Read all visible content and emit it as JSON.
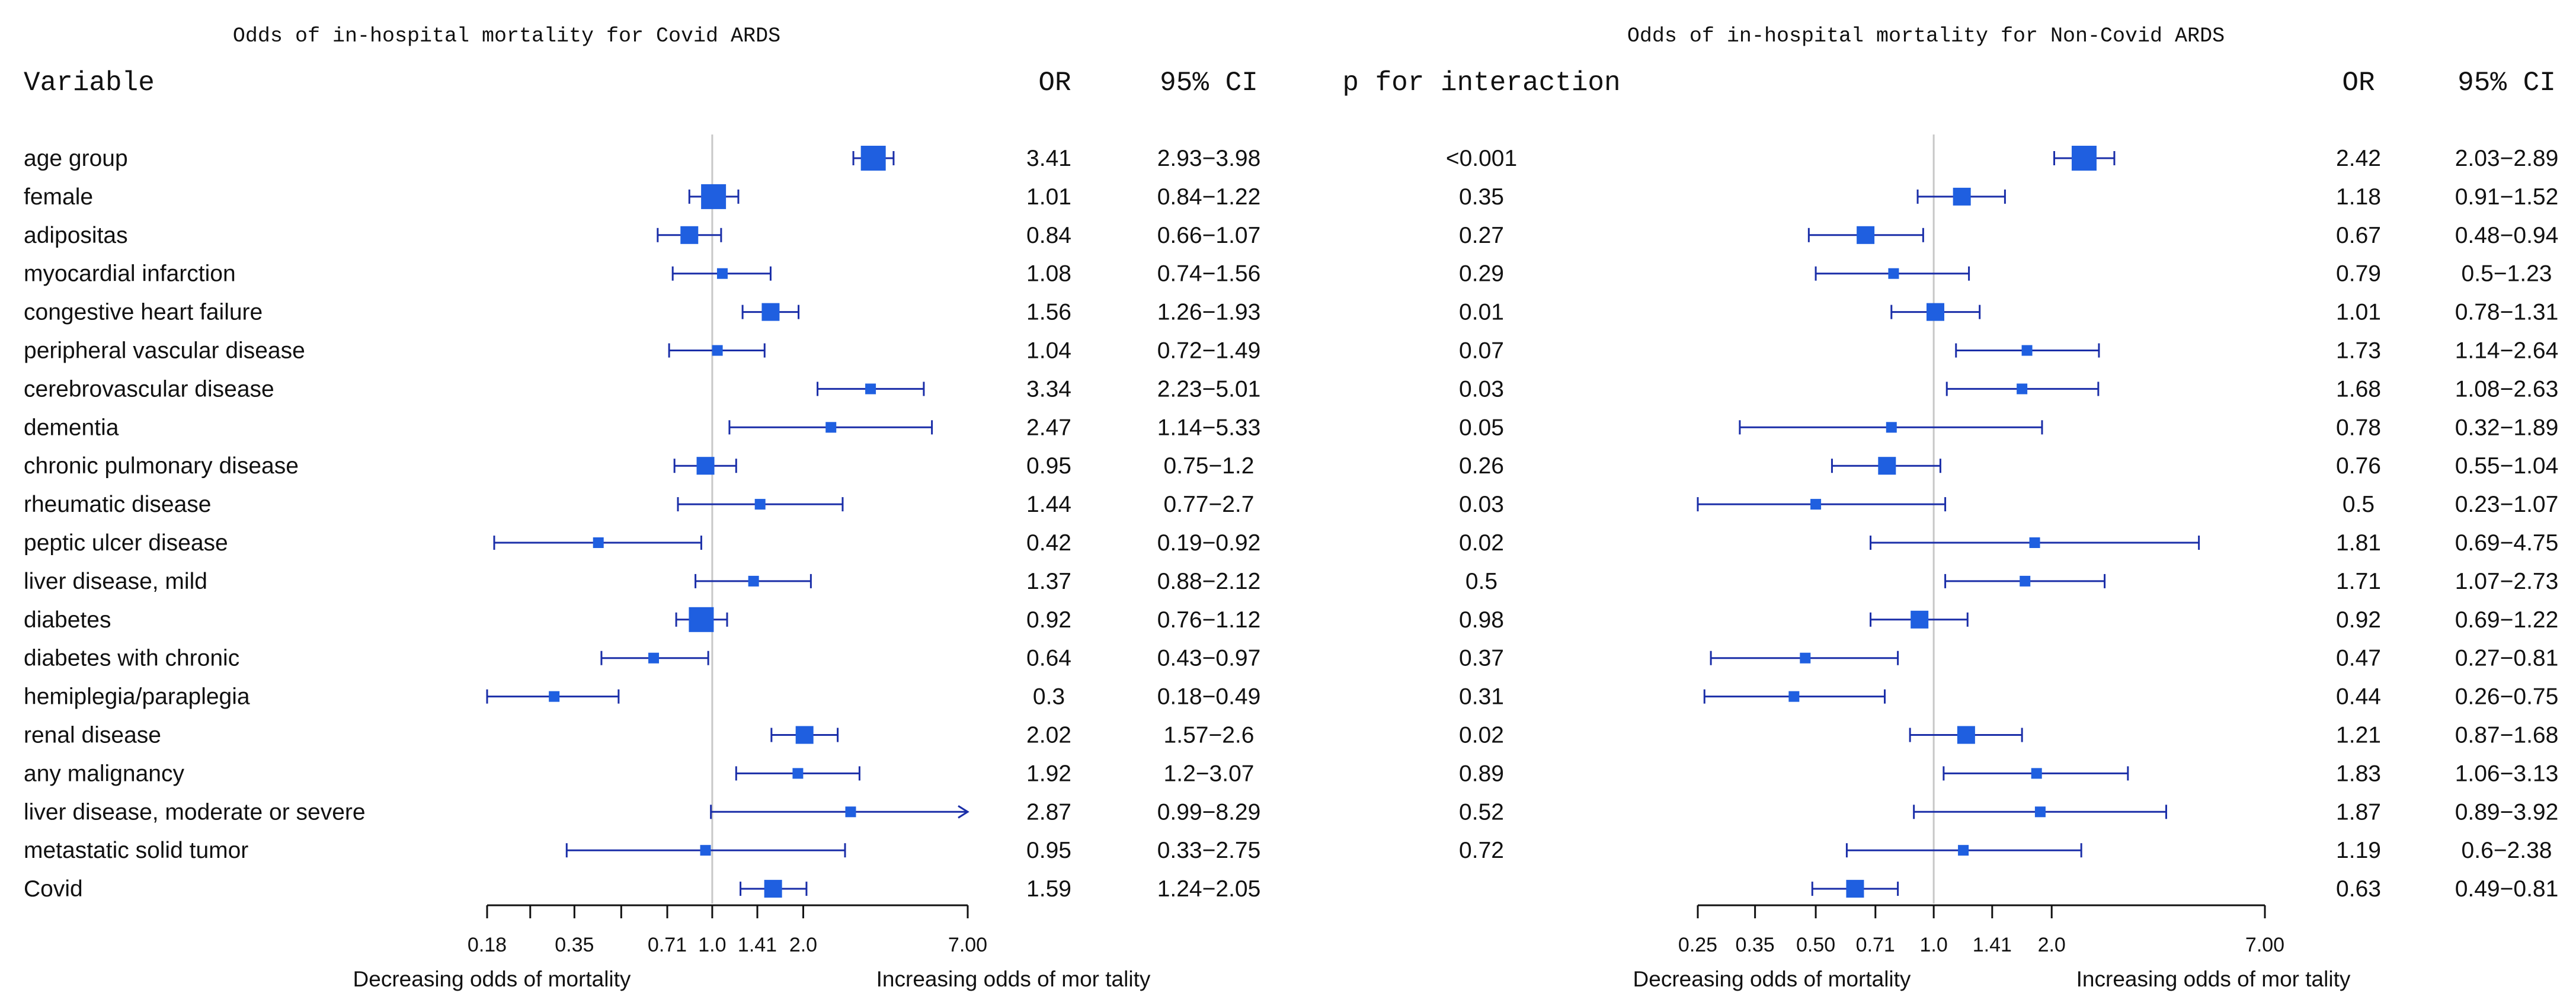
{
  "colors": {
    "marker": "#1F5FE0",
    "ci": "#1A2EA8",
    "axis": "#111111",
    "ref": "#C8C8C8"
  },
  "headers": {
    "variable": "Variable",
    "or": "OR",
    "ci": "95% CI",
    "p_interaction": "p for interaction"
  },
  "direction": {
    "decreasing": "Decreasing odds of mortality",
    "increasing": "Increasing odds of mor tality"
  },
  "variables": [
    "age group",
    "female",
    "adipositas",
    "myocardial infarction",
    "congestive heart failure",
    "peripheral vascular disease",
    "cerebrovascular disease",
    "dementia",
    "chronic pulmonary disease",
    "rheumatic disease",
    "peptic ulcer disease",
    "liver disease, mild",
    "diabetes",
    "diabetes with chronic",
    "hemiplegia/paraplegia",
    "renal disease",
    "any malignancy",
    "liver disease, moderate or severe",
    "metastatic solid tumor",
    "Covid"
  ],
  "p_for_interaction": [
    "<0.001",
    "0.35",
    "0.27",
    "0.29",
    "0.01",
    "0.07",
    "0.03",
    "0.05",
    "0.26",
    "0.03",
    "0.02",
    "0.5",
    "0.98",
    "0.37",
    "0.31",
    "0.02",
    "0.89",
    "0.52",
    "0.72",
    ""
  ],
  "chart_data": [
    {
      "type": "forest",
      "title": "Odds of in-hospital mortality for Covid ARDS",
      "scale": "log",
      "xlim": [
        0.18,
        7.0
      ],
      "reference": 1.0,
      "ticks": [
        0.18,
        0.25,
        0.35,
        0.5,
        0.71,
        1.0,
        1.41,
        2.0,
        7.0
      ],
      "tick_labels": [
        "0.18",
        "",
        "0.35",
        "",
        "0.71",
        "1.0",
        "1.41",
        "2.0",
        "7.00"
      ],
      "or": [
        3.41,
        1.01,
        0.84,
        1.08,
        1.56,
        1.04,
        3.34,
        2.47,
        0.95,
        1.44,
        0.42,
        1.37,
        0.92,
        0.64,
        0.3,
        2.02,
        1.92,
        2.87,
        0.95,
        1.59
      ],
      "or_text": [
        "3.41",
        "1.01",
        "0.84",
        "1.08",
        "1.56",
        "1.04",
        "3.34",
        "2.47",
        "0.95",
        "1.44",
        "0.42",
        "1.37",
        "0.92",
        "0.64",
        "0.3",
        "2.02",
        "1.92",
        "2.87",
        "0.95",
        "1.59"
      ],
      "lower": [
        2.93,
        0.84,
        0.66,
        0.74,
        1.26,
        0.72,
        2.23,
        1.14,
        0.75,
        0.77,
        0.19,
        0.88,
        0.76,
        0.43,
        0.18,
        1.57,
        1.2,
        0.99,
        0.33,
        1.24
      ],
      "upper": [
        3.98,
        1.22,
        1.07,
        1.56,
        1.93,
        1.49,
        5.01,
        5.33,
        1.2,
        2.7,
        0.92,
        2.12,
        1.12,
        0.97,
        0.49,
        2.6,
        3.07,
        8.29,
        2.75,
        2.05
      ],
      "ci_text": [
        "2.93−3.98",
        "0.84−1.22",
        "0.66−1.07",
        "0.74−1.56",
        "1.26−1.93",
        "0.72−1.49",
        "2.23−5.01",
        "1.14−5.33",
        "0.75−1.2",
        "0.77−2.7",
        "0.19−0.92",
        "0.88−2.12",
        "0.76−1.12",
        "0.43−0.97",
        "0.18−0.49",
        "1.57−2.6",
        "1.2−3.07",
        "0.99−8.29",
        "0.33−2.75",
        "1.24−2.05"
      ],
      "marker_weight": [
        3,
        3,
        2,
        1,
        2,
        1,
        1,
        1,
        2,
        1,
        1,
        1,
        3,
        1,
        1,
        2,
        1,
        1,
        1,
        2
      ]
    },
    {
      "type": "forest",
      "title": "Odds of in-hospital mortality for Non-Covid ARDS",
      "scale": "log",
      "xlim": [
        0.25,
        7.0
      ],
      "reference": 1.0,
      "ticks": [
        0.25,
        0.35,
        0.5,
        0.71,
        1.0,
        1.41,
        2.0,
        7.0
      ],
      "tick_labels": [
        "0.25",
        "0.35",
        "0.50",
        "0.71",
        "1.0",
        "1.41",
        "2.0",
        "7.00"
      ],
      "or": [
        2.42,
        1.18,
        0.67,
        0.79,
        1.01,
        1.73,
        1.68,
        0.78,
        0.76,
        0.5,
        1.81,
        1.71,
        0.92,
        0.47,
        0.44,
        1.21,
        1.83,
        1.87,
        1.19,
        0.63
      ],
      "or_text": [
        "2.42",
        "1.18",
        "0.67",
        "0.79",
        "1.01",
        "1.73",
        "1.68",
        "0.78",
        "0.76",
        "0.5",
        "1.81",
        "1.71",
        "0.92",
        "0.47",
        "0.44",
        "1.21",
        "1.83",
        "1.87",
        "1.19",
        "0.63"
      ],
      "lower": [
        2.03,
        0.91,
        0.48,
        0.5,
        0.78,
        1.14,
        1.08,
        0.32,
        0.55,
        0.23,
        0.69,
        1.07,
        0.69,
        0.27,
        0.26,
        0.87,
        1.06,
        0.89,
        0.6,
        0.49
      ],
      "upper": [
        2.89,
        1.52,
        0.94,
        1.23,
        1.31,
        2.64,
        2.63,
        1.89,
        1.04,
        1.07,
        4.75,
        2.73,
        1.22,
        0.81,
        0.75,
        1.68,
        3.13,
        3.92,
        2.38,
        0.81
      ],
      "ci_text": [
        "2.03−2.89",
        "0.91−1.52",
        "0.48−0.94",
        "0.5−1.23",
        "0.78−1.31",
        "1.14−2.64",
        "1.08−2.63",
        "0.32−1.89",
        "0.55−1.04",
        "0.23−1.07",
        "0.69−4.75",
        "1.07−2.73",
        "0.69−1.22",
        "0.27−0.81",
        "0.26−0.75",
        "0.87−1.68",
        "1.06−3.13",
        "0.89−3.92",
        "0.6−2.38",
        "0.49−0.81"
      ],
      "marker_weight": [
        3,
        2,
        2,
        1,
        2,
        1,
        1,
        1,
        2,
        1,
        1,
        1,
        2,
        1,
        1,
        2,
        1,
        1,
        1,
        2
      ]
    }
  ]
}
